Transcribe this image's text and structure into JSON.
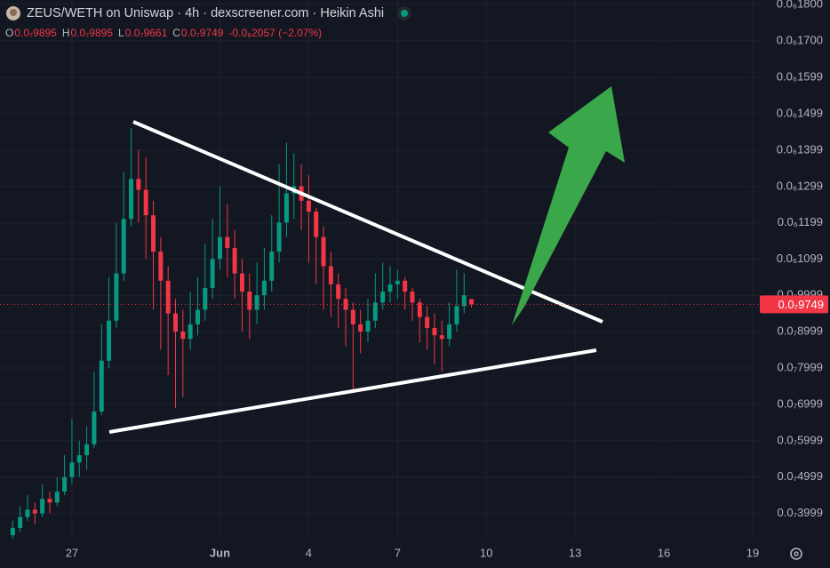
{
  "header": {
    "title": "ZEUS/WETH on Uniswap · 4h · dexscreener.com · Heikin Ashi",
    "ohlc": [
      {
        "key": "O",
        "value": "0.0₇9895"
      },
      {
        "key": "H",
        "value": "0.0₇9895"
      },
      {
        "key": "L",
        "value": "0.0₇9661"
      },
      {
        "key": "C",
        "value": "0.0₇9749"
      }
    ],
    "change": "-0.0₈2057 (−2.07%)"
  },
  "chart_data": {
    "type": "candlestick",
    "x": [
      25,
      25.25,
      25.5,
      25.75,
      26,
      26.25,
      26.5,
      26.75,
      27,
      27.25,
      27.5,
      27.75,
      28,
      28.25,
      28.5,
      28.75,
      29,
      29.25,
      29.5,
      29.75,
      30,
      30.25,
      30.5,
      30.75,
      31,
      31.25,
      31.5,
      31.75,
      32,
      32.25,
      32.5,
      32.75,
      33,
      33.25,
      33.5,
      33.75,
      34,
      34.25,
      34.5,
      34.75,
      35,
      35.25,
      35.5,
      35.75,
      36,
      36.25,
      36.5,
      36.75,
      37,
      37.25,
      37.5,
      37.75,
      38,
      38.25,
      38.5,
      38.75,
      39,
      39.25,
      39.5,
      39.75,
      40,
      40.25,
      40.5
    ],
    "open": [
      3.4e-08,
      3.6e-08,
      3.9e-08,
      4.1e-08,
      4e-08,
      4.4e-08,
      4.3e-08,
      4.6e-08,
      5e-08,
      5.4e-08,
      5.6e-08,
      5.9e-08,
      6.8e-08,
      8.2e-08,
      9.3e-08,
      1.06e-07,
      1.21e-07,
      1.32e-07,
      1.29e-07,
      1.22e-07,
      1.12e-07,
      1.04e-07,
      9.5e-08,
      9e-08,
      8.8e-08,
      9.2e-08,
      9.6e-08,
      1.02e-07,
      1.1e-07,
      1.16e-07,
      1.13e-07,
      1.06e-07,
      1.01e-07,
      9.6e-08,
      1e-07,
      1.04e-07,
      1.12e-07,
      1.2e-07,
      1.28e-07,
      1.3e-07,
      1.26e-07,
      1.23e-07,
      1.16e-07,
      1.08e-07,
      1.03e-07,
      9.9e-08,
      9.6e-08,
      9.2e-08,
      9e-08,
      9.3e-08,
      9.8e-08,
      1.01e-07,
      1.03e-07,
      1.04e-07,
      1.01e-07,
      9.8e-08,
      9.4e-08,
      9.1e-08,
      8.9e-08,
      8.8e-08,
      9.2e-08,
      9.7e-08,
      9.895e-08
    ],
    "high": [
      3.8e-08,
      4.2e-08,
      4.5e-08,
      4.3e-08,
      4.8e-08,
      4.6e-08,
      5e-08,
      5.6e-08,
      6.6e-08,
      6e-08,
      6.4e-08,
      7.9e-08,
      9.2e-08,
      1.05e-07,
      1.2e-07,
      1.34e-07,
      1.46e-07,
      1.4e-07,
      1.38e-07,
      1.26e-07,
      1.16e-07,
      1.08e-07,
      9.9e-08,
      9.6e-08,
      1.01e-07,
      1.05e-07,
      1.14e-07,
      1.21e-07,
      1.3e-07,
      1.25e-07,
      1.18e-07,
      1.1e-07,
      1.06e-07,
      1.09e-07,
      1.13e-07,
      1.22e-07,
      1.36e-07,
      1.42e-07,
      1.39e-07,
      1.36e-07,
      1.33e-07,
      1.24e-07,
      1.19e-07,
      1.12e-07,
      1.06e-07,
      1.02e-07,
      9.8e-08,
      9.6e-08,
      9.9e-08,
      1.06e-07,
      1.09e-07,
      1.08e-07,
      1.07e-07,
      1.05e-07,
      1.02e-07,
      9.9e-08,
      9.7e-08,
      9.5e-08,
      9.3e-08,
      9.8e-08,
      1.07e-07,
      1.06e-07,
      9.895e-08
    ],
    "low": [
      3.3e-08,
      3.5e-08,
      3.8e-08,
      3.7e-08,
      3.9e-08,
      4e-08,
      4.2e-08,
      4.5e-08,
      4.8e-08,
      5e-08,
      5.2e-08,
      5.8e-08,
      6.7e-08,
      8e-08,
      9.1e-08,
      1.04e-07,
      1.19e-07,
      1.2e-07,
      1.1e-07,
      9.6e-08,
      8.5e-08,
      7.8e-08,
      6.9e-08,
      7.2e-08,
      8.5e-08,
      8.9e-08,
      9.3e-08,
      9.9e-08,
      1.07e-07,
      1.05e-07,
      9.9e-08,
      9e-08,
      8.8e-08,
      9.2e-08,
      9.6e-08,
      1.01e-07,
      1.09e-07,
      1.16e-07,
      1.21e-07,
      1.18e-07,
      1.09e-07,
      1.03e-07,
      9.6e-08,
      9.4e-08,
      9.1e-08,
      8.6e-08,
      7.4e-08,
      8.4e-08,
      8.7e-08,
      9.1e-08,
      9.6e-08,
      9.8e-08,
      9.9e-08,
      9.6e-08,
      9.3e-08,
      8.7e-08,
      8.5e-08,
      8.1e-08,
      7.9e-08,
      8.6e-08,
      9e-08,
      9.5e-08,
      9.661e-08
    ],
    "close": [
      3.6e-08,
      3.9e-08,
      4.1e-08,
      4e-08,
      4.4e-08,
      4.3e-08,
      4.6e-08,
      5e-08,
      5.4e-08,
      5.6e-08,
      5.9e-08,
      6.8e-08,
      8.2e-08,
      9.3e-08,
      1.06e-07,
      1.21e-07,
      1.32e-07,
      1.29e-07,
      1.22e-07,
      1.12e-07,
      1.04e-07,
      9.5e-08,
      9e-08,
      8.8e-08,
      9.2e-08,
      9.6e-08,
      1.02e-07,
      1.1e-07,
      1.16e-07,
      1.13e-07,
      1.06e-07,
      1.01e-07,
      9.6e-08,
      1e-07,
      1.04e-07,
      1.12e-07,
      1.2e-07,
      1.28e-07,
      1.3e-07,
      1.26e-07,
      1.23e-07,
      1.16e-07,
      1.08e-07,
      1.03e-07,
      9.9e-08,
      9.6e-08,
      9.2e-08,
      9e-08,
      9.3e-08,
      9.8e-08,
      1.01e-07,
      1.03e-07,
      1.04e-07,
      1.01e-07,
      9.8e-08,
      9.4e-08,
      9.1e-08,
      8.9e-08,
      8.8e-08,
      9.2e-08,
      9.7e-08,
      1e-07,
      9.749e-08
    ],
    "up_color": "#089981",
    "down_color": "#f23645",
    "xlim": [
      24.57,
      50.24
    ],
    "ylim": [
      3.33e-08,
      1.812e-07
    ],
    "xticks": [
      27,
      {
        "value": 32,
        "label": "Jun"
      },
      {
        "value": 35,
        "label": "4"
      },
      {
        "value": 38,
        "label": "7"
      },
      {
        "value": 41,
        "label": "10"
      },
      {
        "value": 44,
        "label": "13"
      },
      {
        "value": 47,
        "label": "16"
      },
      {
        "value": 50,
        "label": "19"
      }
    ],
    "yticks": [
      {
        "value": 1.8e-07,
        "label": "0.0₆1800"
      },
      {
        "value": 1.7e-07,
        "label": "0.0₆1700"
      },
      {
        "value": 1.599e-07,
        "label": "0.0₆1599"
      },
      {
        "value": 1.499e-07,
        "label": "0.0₆1499"
      },
      {
        "value": 1.399e-07,
        "label": "0.0₆1399"
      },
      {
        "value": 1.299e-07,
        "label": "0.0₆1299"
      },
      {
        "value": 1.199e-07,
        "label": "0.0₆1199"
      },
      {
        "value": 1.099e-07,
        "label": "0.0₆1099"
      },
      {
        "value": 9.999e-08,
        "label": "0.0₇9999"
      },
      {
        "value": 8.999e-08,
        "label": "0.0₇8999"
      },
      {
        "value": 7.999e-08,
        "label": "0.0₇7999"
      },
      {
        "value": 6.999e-08,
        "label": "0.0₇6999"
      },
      {
        "value": 5.999e-08,
        "label": "0.0₇5999"
      },
      {
        "value": 4.999e-08,
        "label": "0.0₇4999"
      },
      {
        "value": 3.999e-08,
        "label": "0.0₇3999"
      }
    ],
    "price_line": {
      "value": 9.749e-08,
      "label": "0.0₇9749"
    },
    "grid": true
  }
}
